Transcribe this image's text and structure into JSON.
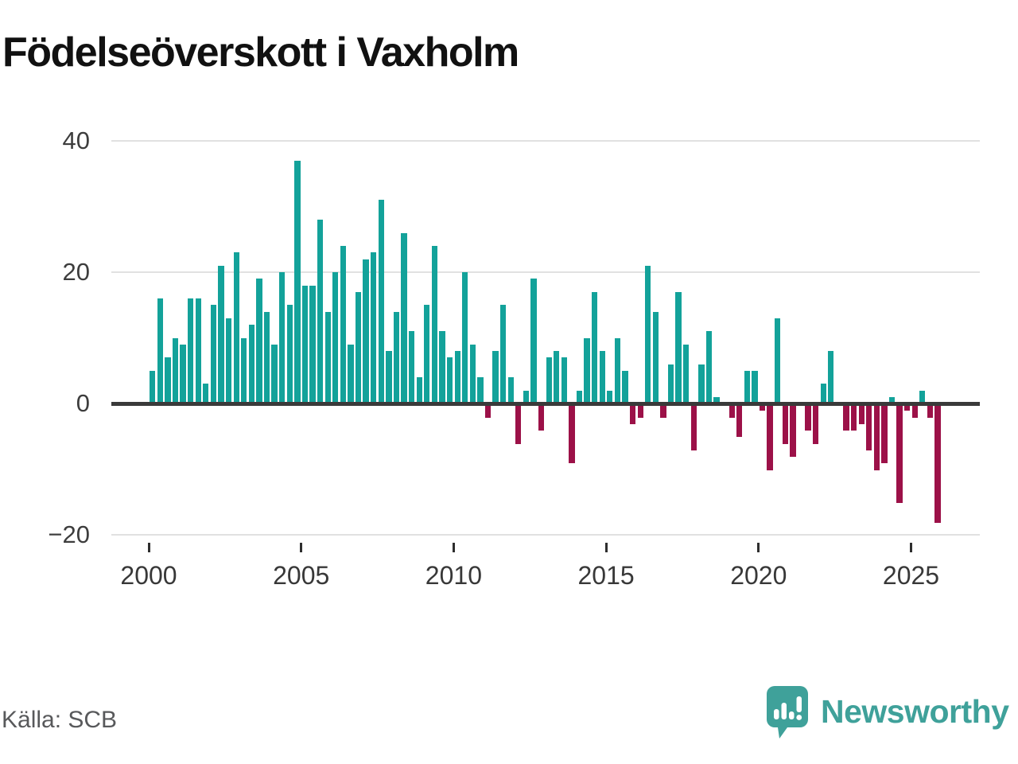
{
  "title": "Födelseöverskott i Vaxholm",
  "source": "Källa: SCB",
  "logo": {
    "text": "Newsworthy",
    "icon": "newsworthy-speech-bubble-chart-icon",
    "color": "#3fa19a"
  },
  "chart_data": {
    "type": "bar",
    "title": "Födelseöverskott i Vaxholm",
    "xlabel": "",
    "ylabel": "",
    "ylim": [
      -20,
      40
    ],
    "grid": "horizontal",
    "legend": "none",
    "colors": {
      "positive": "#13a29a",
      "negative": "#9c1148"
    },
    "y_ticks": [
      {
        "v": 40,
        "label": "40"
      },
      {
        "v": 20,
        "label": "20"
      },
      {
        "v": 0,
        "label": "0"
      },
      {
        "v": -20,
        "label": "−20"
      }
    ],
    "x_ticks": [
      {
        "year": 2000,
        "label": "2000"
      },
      {
        "year": 2005,
        "label": "2005"
      },
      {
        "year": 2010,
        "label": "2010"
      },
      {
        "year": 2015,
        "label": "2015"
      },
      {
        "year": 2020,
        "label": "2020"
      },
      {
        "year": 2025,
        "label": "2025"
      }
    ],
    "x": [
      "2000 Q1",
      "2000 Q2",
      "2000 Q3",
      "2000 Q4",
      "2001 Q1",
      "2001 Q2",
      "2001 Q3",
      "2001 Q4",
      "2002 Q1",
      "2002 Q2",
      "2002 Q3",
      "2002 Q4",
      "2003 Q1",
      "2003 Q2",
      "2003 Q3",
      "2003 Q4",
      "2004 Q1",
      "2004 Q2",
      "2004 Q3",
      "2004 Q4",
      "2005 Q1",
      "2005 Q2",
      "2005 Q3",
      "2005 Q4",
      "2006 Q1",
      "2006 Q2",
      "2006 Q3",
      "2006 Q4",
      "2007 Q1",
      "2007 Q2",
      "2007 Q3",
      "2007 Q4",
      "2008 Q1",
      "2008 Q2",
      "2008 Q3",
      "2008 Q4",
      "2009 Q1",
      "2009 Q2",
      "2009 Q3",
      "2009 Q4",
      "2010 Q1",
      "2010 Q2",
      "2010 Q3",
      "2010 Q4",
      "2011 Q1",
      "2011 Q2",
      "2011 Q3",
      "2011 Q4",
      "2012 Q1",
      "2012 Q2",
      "2012 Q3",
      "2012 Q4",
      "2013 Q1",
      "2013 Q2",
      "2013 Q3",
      "2013 Q4",
      "2014 Q1",
      "2014 Q2",
      "2014 Q3",
      "2014 Q4",
      "2015 Q1",
      "2015 Q2",
      "2015 Q3",
      "2015 Q4",
      "2016 Q1",
      "2016 Q2",
      "2016 Q3",
      "2016 Q4",
      "2017 Q1",
      "2017 Q2",
      "2017 Q3",
      "2017 Q4",
      "2018 Q1",
      "2018 Q2",
      "2018 Q3",
      "2018 Q4",
      "2019 Q1",
      "2019 Q2",
      "2019 Q3",
      "2019 Q4",
      "2020 Q1",
      "2020 Q2",
      "2020 Q3",
      "2020 Q4",
      "2021 Q1",
      "2021 Q2",
      "2021 Q3",
      "2021 Q4",
      "2022 Q1",
      "2022 Q2",
      "2022 Q3",
      "2022 Q4",
      "2023 Q1",
      "2023 Q2",
      "2023 Q3",
      "2023 Q4",
      "2024 Q1",
      "2024 Q2",
      "2024 Q3",
      "2024 Q4",
      "2025 Q1",
      "2025 Q2",
      "2025 Q3",
      "2025 Q4"
    ],
    "values": [
      5,
      16,
      7,
      10,
      9,
      16,
      16,
      3,
      15,
      21,
      13,
      23,
      10,
      12,
      19,
      14,
      9,
      20,
      15,
      37,
      18,
      18,
      28,
      14,
      20,
      24,
      9,
      17,
      22,
      23,
      31,
      8,
      14,
      26,
      11,
      4,
      15,
      24,
      11,
      7,
      8,
      20,
      9,
      4,
      -2,
      8,
      15,
      4,
      -6,
      2,
      19,
      -4,
      7,
      8,
      7,
      -9,
      2,
      10,
      17,
      8,
      2,
      10,
      5,
      -3,
      -2,
      21,
      14,
      -2,
      6,
      17,
      9,
      -7,
      6,
      11,
      1,
      0,
      -2,
      -5,
      5,
      5,
      -1,
      -10,
      13,
      -6,
      -8,
      0,
      -4,
      -6,
      3,
      8,
      0,
      -4,
      -4,
      -3,
      -7,
      -10,
      -9,
      1,
      -15,
      -1,
      -2,
      2,
      -2,
      -18
    ]
  }
}
